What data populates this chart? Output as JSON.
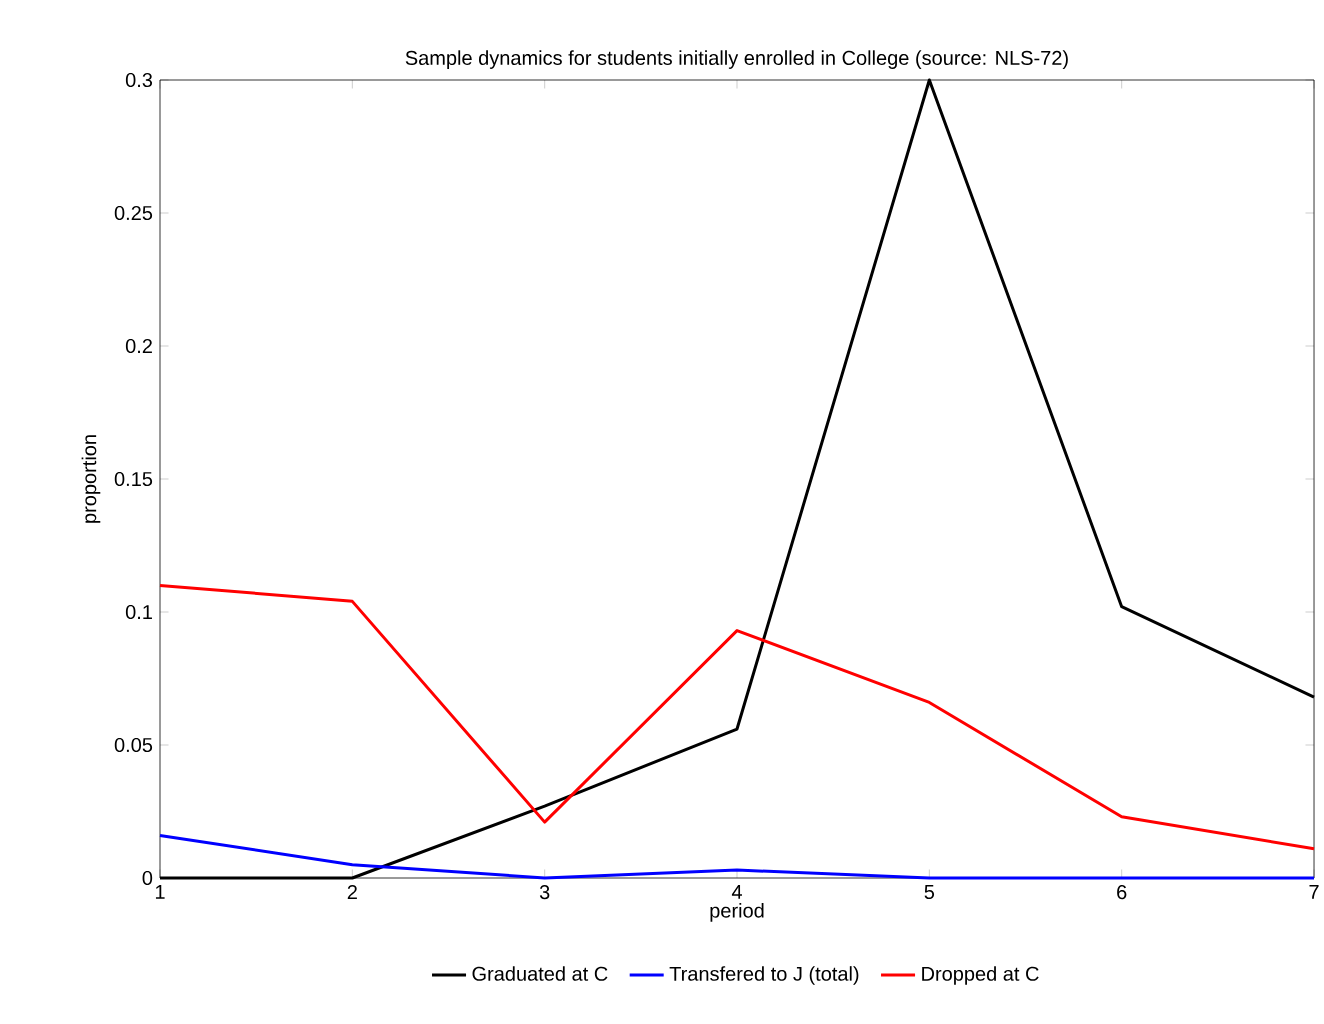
{
  "chart_data": {
    "type": "line",
    "title": "Sample dynamics for students initially enrolled in College (source: NLS-72)",
    "xlabel": "period",
    "ylabel": "proportion",
    "x": [
      1,
      2,
      3,
      4,
      5,
      6,
      7
    ],
    "series": [
      {
        "name": "Graduated at C",
        "color": "#000000",
        "values": [
          0,
          0,
          0.027,
          0.056,
          0.3,
          0.102,
          0.068
        ]
      },
      {
        "name": "Transfered to J (total)",
        "color": "#0000ff",
        "values": [
          0.016,
          0.005,
          0,
          0.003,
          0,
          0,
          0
        ]
      },
      {
        "name": "Dropped at C",
        "color": "#ff0000",
        "values": [
          0.11,
          0.104,
          0.021,
          0.093,
          0.066,
          0.023,
          0.011
        ]
      }
    ],
    "xlim": [
      1,
      7
    ],
    "ylim": [
      0,
      0.3
    ],
    "xticks": [
      1,
      2,
      3,
      4,
      5,
      6,
      7
    ],
    "yticks": [
      0,
      0.05,
      0.1,
      0.15,
      0.2,
      0.25,
      0.3
    ],
    "grid": false,
    "legend": "bottom"
  }
}
